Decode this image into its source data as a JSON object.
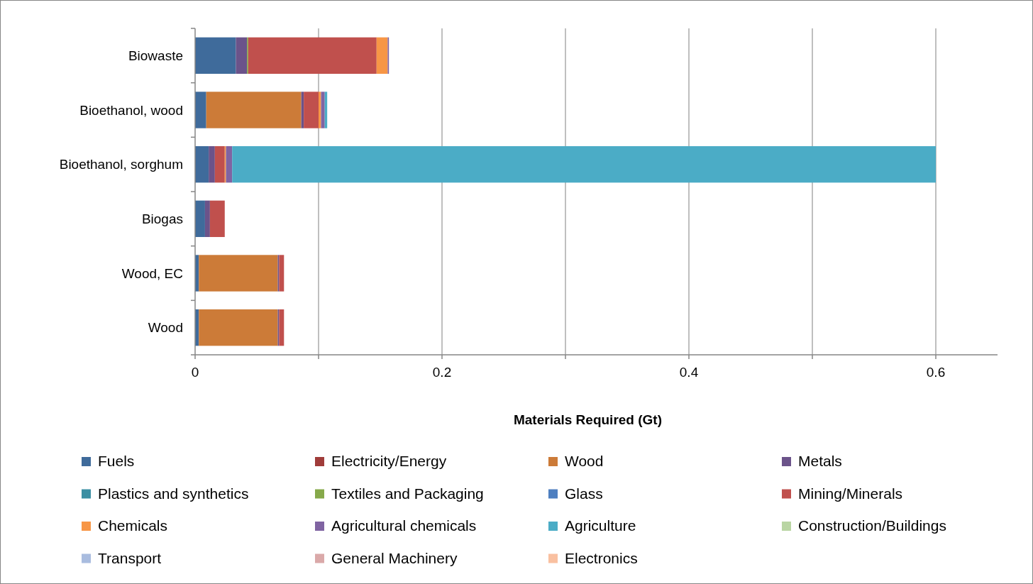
{
  "chart_data": {
    "type": "bar",
    "orientation": "horizontal",
    "stacked": true,
    "xlabel": "Materials Required (Gt)",
    "categories": [
      "Biowaste",
      "Bioethanol, wood",
      "Bioethanol, sorghum",
      "Biogas",
      "Wood, EC",
      "Wood"
    ],
    "series": [
      {
        "name": "Fuels",
        "color": "#3f6b9b",
        "values": [
          0.033,
          0.009,
          0.011,
          0.008,
          0.003,
          0.003
        ]
      },
      {
        "name": "Electricity/Energy",
        "color": "#a03c3a",
        "values": [
          0,
          0,
          0,
          0,
          0,
          0
        ]
      },
      {
        "name": "Wood",
        "color": "#cc7b38",
        "values": [
          0,
          0.077,
          0,
          0,
          0.064,
          0.064
        ]
      },
      {
        "name": "Metals",
        "color": "#6b538a",
        "values": [
          0.009,
          0.002,
          0.005,
          0.004,
          0.001,
          0.001
        ]
      },
      {
        "name": "Plastics and synthetics",
        "color": "#3b8fa3",
        "values": [
          0,
          0,
          0,
          0,
          0,
          0
        ]
      },
      {
        "name": "Textiles and Packaging",
        "color": "#86a94a",
        "values": [
          0.001,
          0,
          0,
          0,
          0,
          0
        ]
      },
      {
        "name": "Glass",
        "color": "#4e7fc0",
        "values": [
          0,
          0,
          0,
          0,
          0,
          0
        ]
      },
      {
        "name": "Mining/Minerals",
        "color": "#c0504d",
        "values": [
          0.104,
          0.012,
          0.008,
          0.012,
          0.004,
          0.004
        ]
      },
      {
        "name": "Chemicals",
        "color": "#f79646",
        "values": [
          0.009,
          0.002,
          0.001,
          0,
          0,
          0
        ]
      },
      {
        "name": "Agricultural chemicals",
        "color": "#8064a2",
        "values": [
          0.001,
          0.003,
          0.005,
          0,
          0,
          0
        ]
      },
      {
        "name": "Agriculture",
        "color": "#4bacc6",
        "values": [
          0,
          0.002,
          0.57,
          0,
          0,
          0
        ]
      },
      {
        "name": "Construction/Buildings",
        "color": "#b9d5a3",
        "values": [
          0,
          0,
          0,
          0,
          0,
          0
        ]
      },
      {
        "name": "Transport",
        "color": "#a9bcdf",
        "values": [
          0,
          0,
          0,
          0,
          0,
          0
        ]
      },
      {
        "name": "General Machinery",
        "color": "#daa9a9",
        "values": [
          0,
          0,
          0,
          0,
          0,
          0
        ]
      },
      {
        "name": "Electronics",
        "color": "#f9c0a0",
        "values": [
          0,
          0,
          0,
          0,
          0,
          0
        ]
      }
    ],
    "xlim": [
      0,
      0.65
    ],
    "xticks": [
      0,
      {
        "value": 0.1,
        "label": null
      },
      0.2,
      {
        "value": 0.3,
        "label": null
      },
      0.4,
      {
        "value": 0.5,
        "label": null
      },
      0.6
    ],
    "grid": "x",
    "legend": "bottom"
  }
}
